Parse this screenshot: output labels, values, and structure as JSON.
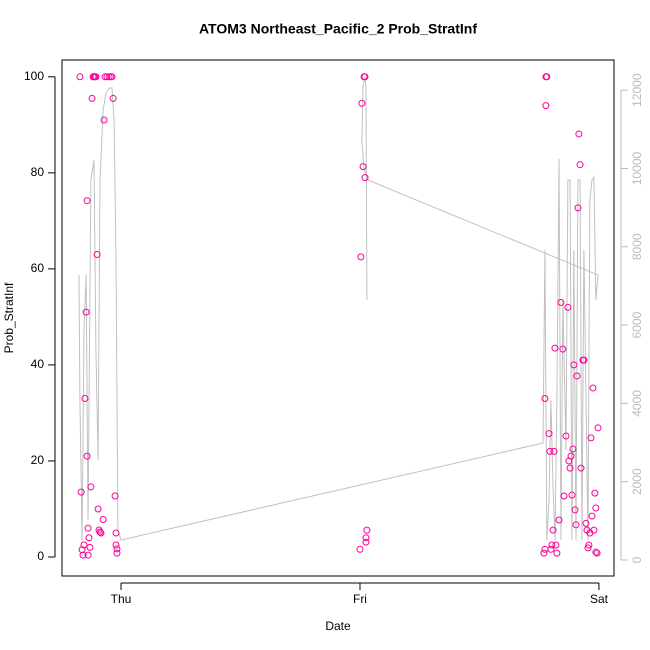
{
  "chart_data": {
    "type": "scatter",
    "title": "ATOM3 Northeast_Pacific_2 Prob_StratInf",
    "xlabel": "Date",
    "ylabel": "Prob_StratInf",
    "xlim": [
      -0.247,
      2.063
    ],
    "ylim": [
      -3.96,
      103.5
    ],
    "y2lim": [
      -409,
      12771
    ],
    "xticks": [
      {
        "value": 0,
        "label": "Thu"
      },
      {
        "value": 1,
        "label": "Fri"
      },
      {
        "value": 2,
        "label": "Sat"
      }
    ],
    "yticks": [
      0,
      20,
      40,
      60,
      80,
      100
    ],
    "y2ticks": [
      0,
      2000,
      4000,
      6000,
      8000,
      10000,
      12000
    ],
    "y2color": "#bbbbbb",
    "series": [
      {
        "type": "scatter",
        "color": "#ff0099",
        "x": [
          -0.172,
          -0.167,
          -0.163,
          -0.159,
          -0.155,
          -0.151,
          -0.146,
          -0.142,
          -0.142,
          -0.138,
          -0.134,
          -0.138,
          -0.13,
          -0.126,
          -0.121,
          -0.117,
          -0.113,
          -0.109,
          -0.105,
          -0.1,
          -0.096,
          -0.092,
          -0.088,
          -0.084,
          -0.075,
          -0.071,
          -0.067,
          -0.059,
          -0.05,
          -0.042,
          -0.038,
          -0.033,
          -0.025,
          -0.021,
          -0.021,
          -0.017,
          -0.017,
          1.0,
          1.004,
          1.008,
          1.013,
          1.017,
          1.021,
          1.021,
          1.025,
          1.025,
          1.029,
          1.774,
          1.778,
          1.782,
          1.778,
          1.77,
          1.774,
          1.791,
          1.795,
          1.799,
          1.803,
          1.808,
          1.812,
          1.816,
          1.82,
          1.824,
          1.833,
          1.841,
          1.849,
          1.854,
          1.862,
          1.87,
          1.874,
          1.879,
          1.883,
          1.887,
          1.891,
          1.895,
          1.9,
          1.904,
          1.908,
          1.912,
          1.916,
          1.921,
          1.925,
          1.933,
          1.937,
          1.946,
          1.95,
          1.954,
          1.958,
          1.962,
          1.967,
          1.971,
          1.975,
          1.979,
          1.983,
          1.987,
          1.987,
          1.992,
          1.996
        ],
        "values": [
          100,
          13.5,
          1.5,
          0.4,
          2.5,
          33,
          51,
          74.2,
          21,
          6,
          4,
          0.4,
          2,
          14.6,
          95.5,
          100,
          100,
          100,
          100,
          63,
          10,
          5.6,
          5.2,
          5,
          7.8,
          91,
          100,
          100,
          100,
          100,
          100,
          95.5,
          12.7,
          5,
          2.5,
          1.7,
          0.8,
          1.6,
          62.5,
          94.5,
          81.3,
          100,
          100,
          79,
          4,
          3.1,
          5.6,
          33,
          100,
          100,
          94,
          0.8,
          1.6,
          25.7,
          22,
          1.6,
          2.5,
          5.6,
          22,
          43.5,
          2.5,
          0.8,
          7.7,
          53,
          43.3,
          12.7,
          25.2,
          52,
          20,
          18.5,
          21,
          12.9,
          22.5,
          40,
          9.8,
          6.7,
          37.7,
          72.7,
          88.1,
          81.7,
          18.5,
          41,
          41,
          7,
          5.6,
          1.9,
          2.5,
          5,
          24.8,
          8.5,
          35.2,
          5.6,
          13.3,
          1,
          10.2,
          0.8,
          26.9
        ]
      },
      {
        "type": "line",
        "axis": "y2",
        "color": "#c0c0c0",
        "x": [
          -0.176,
          -0.172,
          -0.163,
          -0.155,
          -0.146,
          -0.138,
          -0.126,
          -0.113,
          -0.105,
          -0.096,
          -0.088,
          -0.075,
          -0.063,
          -0.05,
          -0.038,
          -0.029,
          -0.021,
          -0.013,
          0,
          1.766,
          1.774,
          1.782,
          1.791,
          1.799,
          1.808,
          1.816,
          1.824,
          1.833,
          1.841,
          1.849,
          1.862,
          1.87,
          1.879,
          1.887,
          1.895,
          1.904,
          1.912,
          1.921,
          1.929,
          1.937,
          1.946,
          1.954,
          1.962,
          1.971,
          1.979,
          1.987,
          1.996,
          1.033,
          1.017,
          1.008,
          1.013,
          1.021,
          1.025,
          1.029
        ],
        "values": [
          7280,
          4087,
          511,
          5875,
          7280,
          1022,
          9706,
          10217,
          5364,
          2554,
          9706,
          11494,
          11928,
          12056,
          12056,
          11239,
          7663,
          766,
          511,
          2988,
          7918,
          511,
          1533,
          4087,
          1839,
          511,
          4087,
          10243,
          511,
          6641,
          2810,
          9706,
          9706,
          511,
          7918,
          511,
          9706,
          9706,
          511,
          7918,
          4087,
          511,
          9195,
          9706,
          9783,
          6641,
          7280,
          9706,
          9962,
          10728,
          12133,
          12337,
          12056,
          6641
        ]
      }
    ]
  }
}
